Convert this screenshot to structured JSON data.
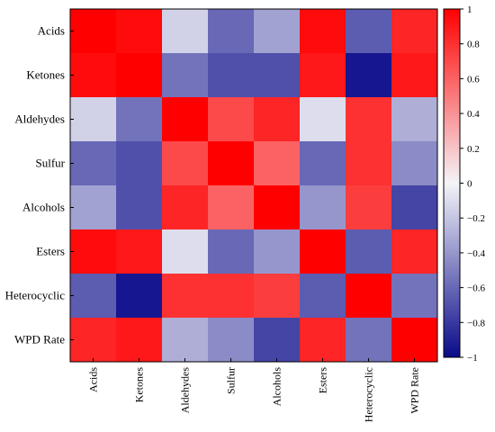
{
  "chart_data": {
    "type": "heatmap",
    "rows": [
      "Acids",
      "Ketones",
      "Aldehydes",
      "Sulfur",
      "Alcohols",
      "Esters",
      "Heterocyclic",
      "WPD Rate"
    ],
    "columns": [
      "Acids",
      "Ketones",
      "Aldehydes",
      "Sulfur",
      "Alcohols",
      "Esters",
      "Heterocyclic",
      "WPD Rate"
    ],
    "values": [
      [
        1.0,
        0.95,
        -0.15,
        -0.6,
        -0.35,
        0.95,
        -0.65,
        0.85
      ],
      [
        0.95,
        1.0,
        -0.55,
        -0.7,
        -0.7,
        0.9,
        -0.95,
        0.9
      ],
      [
        -0.15,
        -0.55,
        1.0,
        0.7,
        0.85,
        -0.1,
        0.8,
        -0.3
      ],
      [
        -0.6,
        -0.7,
        0.7,
        1.0,
        0.6,
        -0.6,
        0.8,
        -0.45
      ],
      [
        -0.35,
        -0.7,
        0.85,
        0.6,
        1.0,
        -0.4,
        0.75,
        -0.75
      ],
      [
        0.95,
        0.9,
        -0.1,
        -0.6,
        -0.4,
        1.0,
        -0.65,
        0.85
      ],
      [
        -0.65,
        -0.95,
        0.8,
        0.8,
        0.75,
        -0.65,
        1.0,
        -0.55
      ],
      [
        0.85,
        0.9,
        -0.3,
        -0.45,
        -0.75,
        0.85,
        -0.55,
        1.0
      ]
    ],
    "vmin": -1,
    "vmax": 1,
    "colormap": {
      "low": "#0a0a8a",
      "mid": "#f4f4f8",
      "high": "#ff0000"
    },
    "colorbar": {
      "ticks": [
        1,
        0.8,
        0.6,
        0.4,
        0.2,
        0,
        -0.2,
        -0.4,
        -0.6,
        -0.8,
        -1
      ],
      "tick_labels": [
        "1",
        "0.8",
        "0.6",
        "0.4",
        "0.2",
        "0",
        "−0.2",
        "−0.4",
        "−0.6",
        "−0.8",
        "−1"
      ]
    },
    "grid": false
  }
}
